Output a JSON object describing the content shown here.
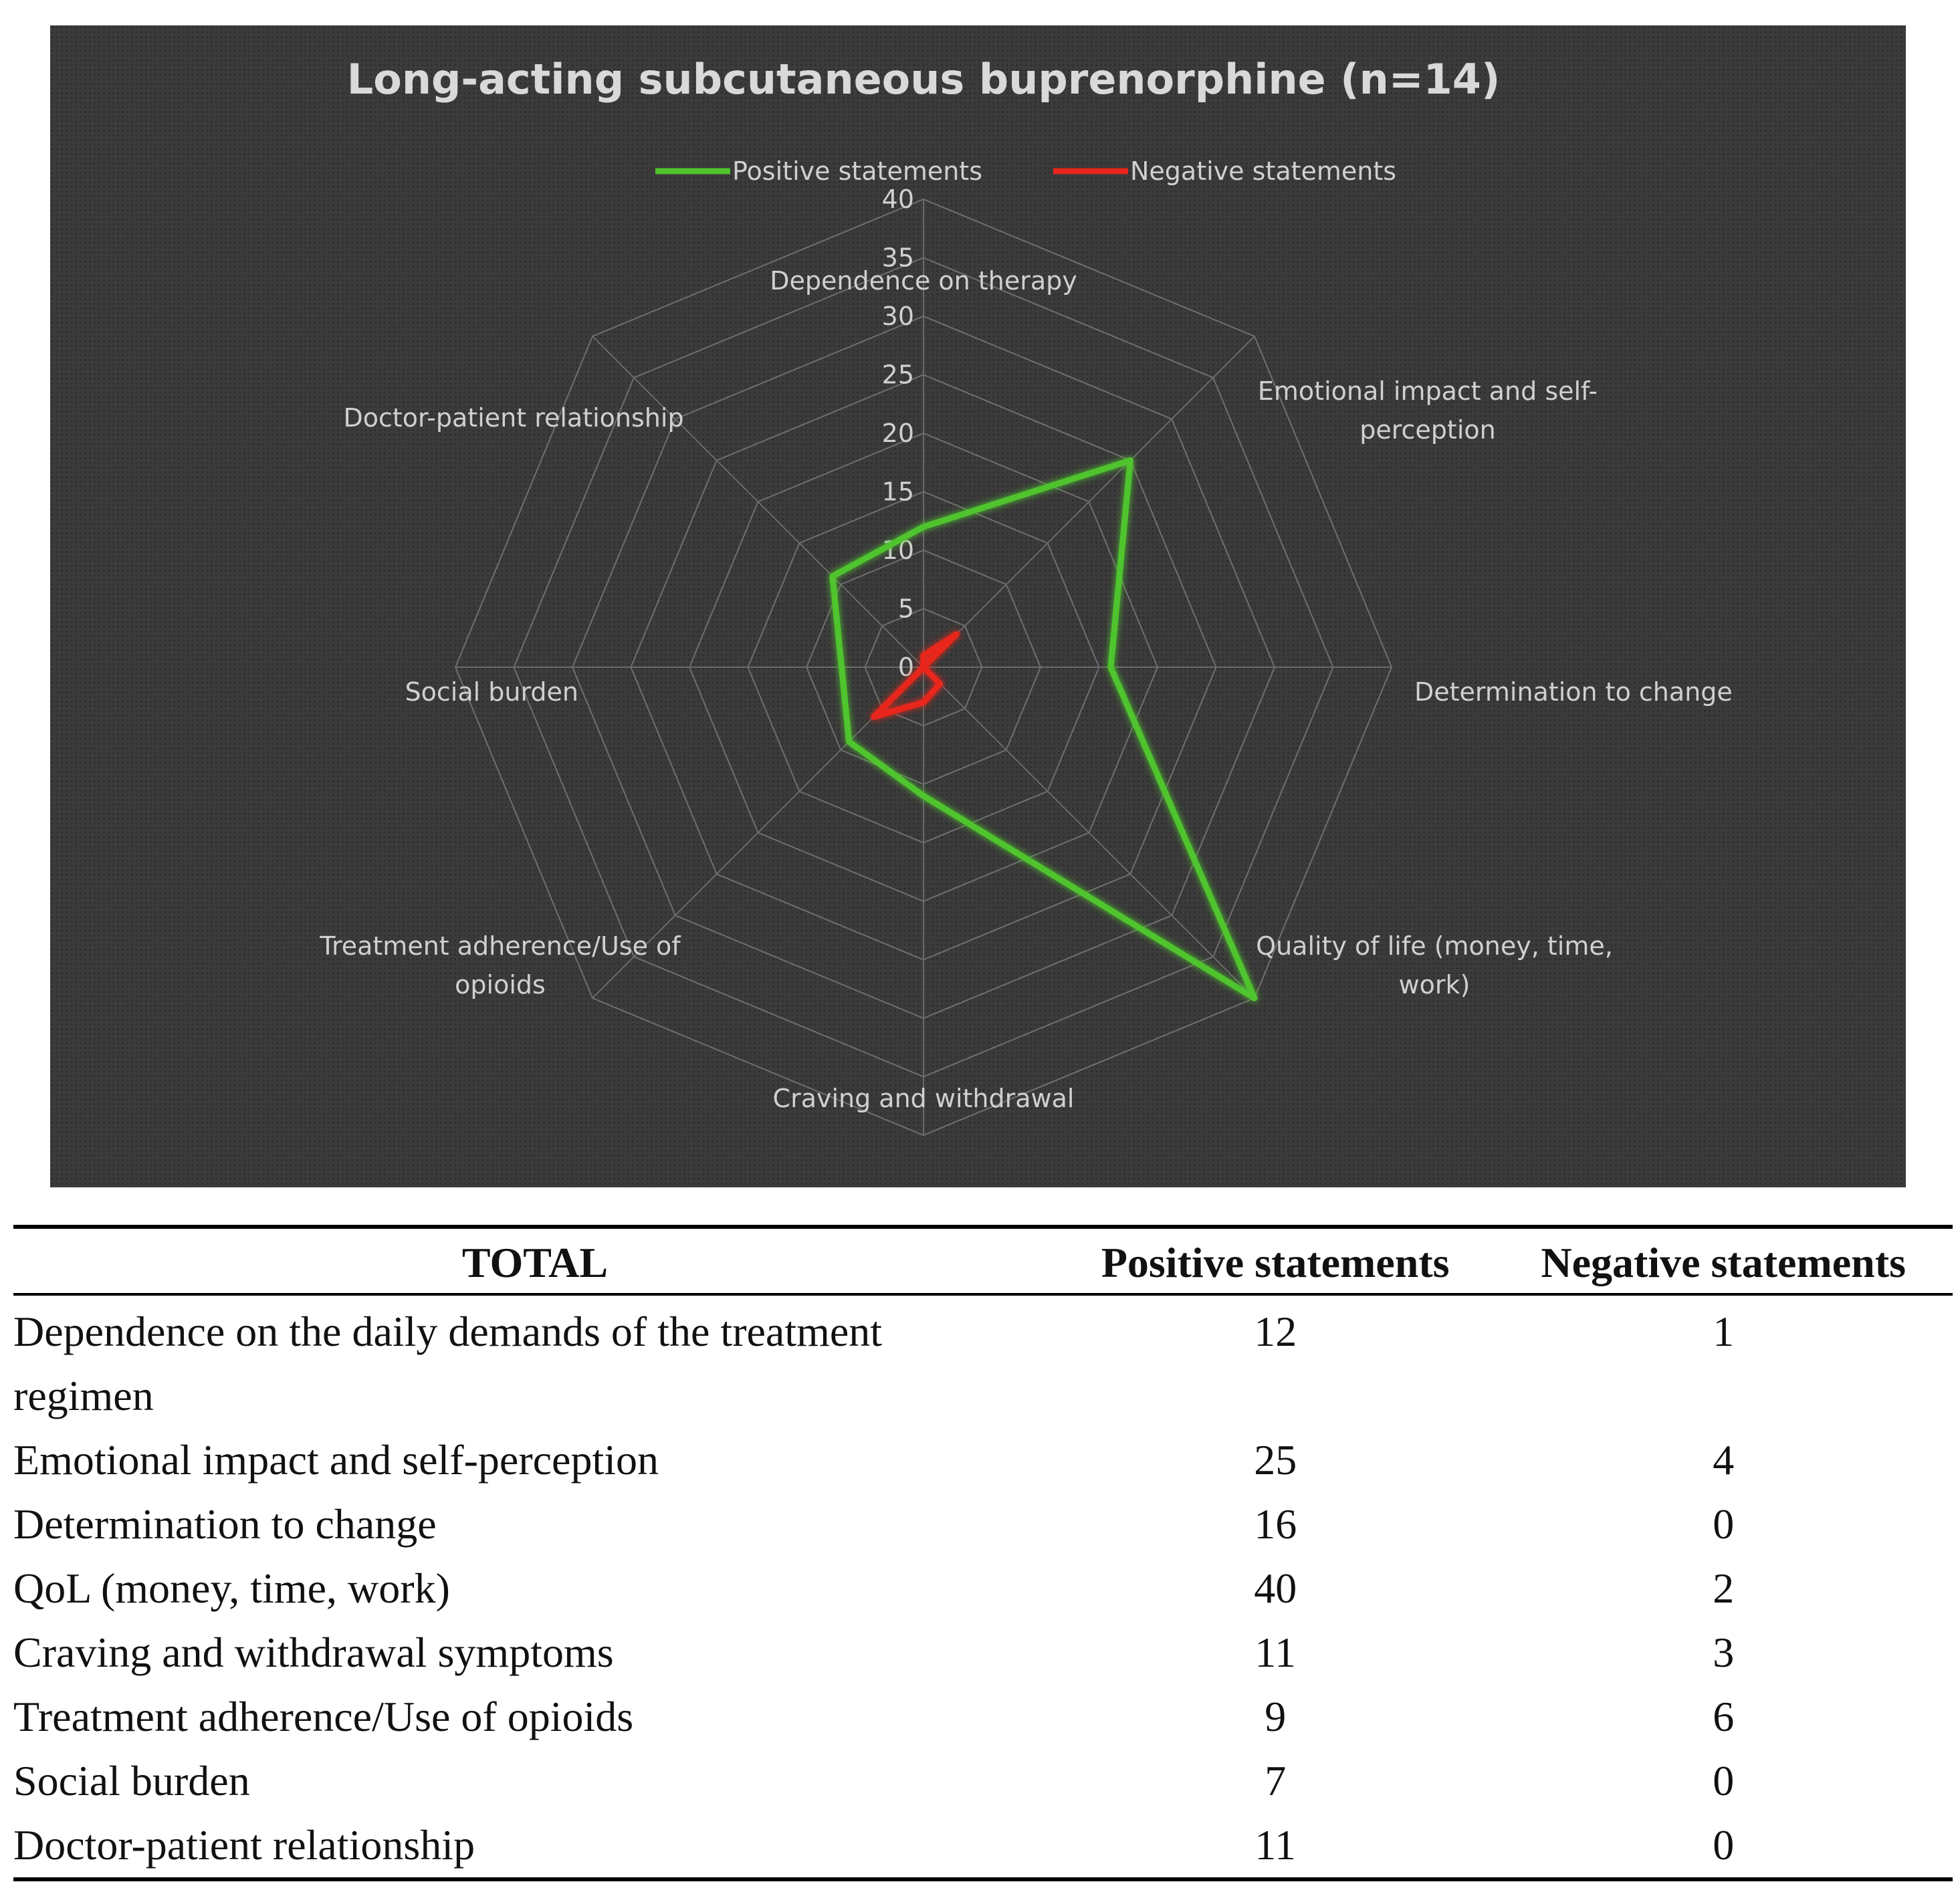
{
  "chart_data": {
    "type": "radar",
    "title": "Long-acting subcutaneous buprenorphine  (n=14)",
    "categories": [
      "Dependence on therapy",
      "Emotional impact and self-perception",
      "Determination to change",
      "Quality of life (money, time, work)",
      "Craving and withdrawal",
      "Treatment adherence/Use of opioids",
      "Social burden",
      "Doctor-patient relationship"
    ],
    "series": [
      {
        "name": "Positive statements",
        "color": "#4fc42d",
        "values": [
          12,
          25,
          16,
          40,
          11,
          9,
          7,
          11
        ]
      },
      {
        "name": "Negative statements",
        "color": "#e8261a",
        "values": [
          1,
          4,
          0,
          2,
          3,
          6,
          0,
          0
        ]
      }
    ],
    "rlim": [
      0,
      40
    ],
    "ticks": [
      "0",
      "5",
      "10",
      "15",
      "20",
      "25",
      "30",
      "35",
      "40"
    ],
    "legend": "top",
    "background": "#3b3b3b"
  },
  "table": {
    "headers": [
      "TOTAL",
      "Positive statements",
      "Negative statements"
    ],
    "rows": [
      [
        "Dependence on the daily demands of the treatment regimen",
        "12",
        "1"
      ],
      [
        "Emotional impact and self-perception",
        "25",
        "4"
      ],
      [
        "Determination to change",
        "16",
        "0"
      ],
      [
        "QoL (money, time, work)",
        "40",
        "2"
      ],
      [
        "Craving and withdrawal symptoms",
        "11",
        "3"
      ],
      [
        "Treatment adherence/Use of opioids",
        "9",
        "6"
      ],
      [
        "Social burden",
        "7",
        "0"
      ],
      [
        "Doctor-patient relationship",
        "11",
        "0"
      ]
    ]
  }
}
